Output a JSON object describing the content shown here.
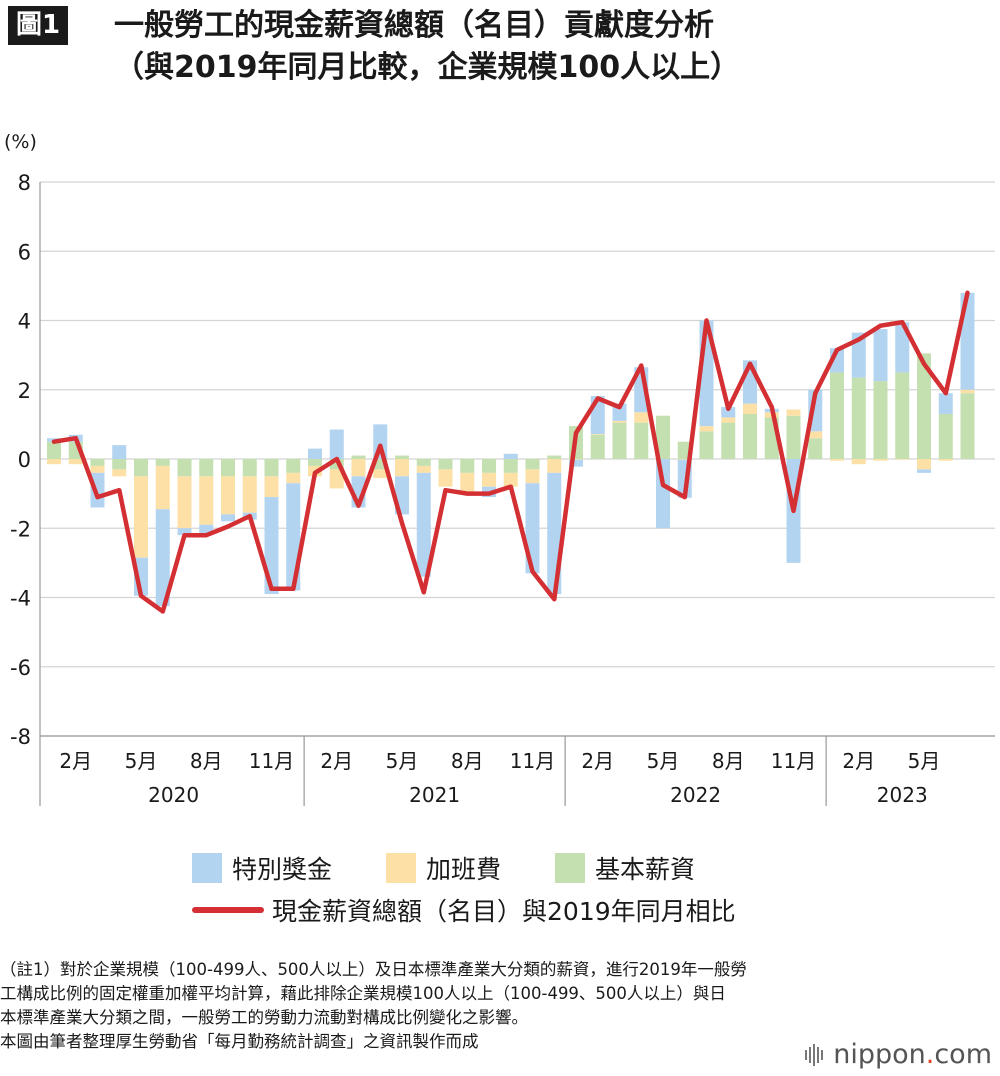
{
  "header": {
    "badge": "圖1",
    "title_line1": "一般勞工的現金薪資總額（名目）貢獻度分析",
    "title_line2": "（與2019年同月比較，企業規模100人以上）"
  },
  "colors": {
    "special_bonus": "#b3d4f0",
    "overtime": "#fde0a6",
    "base_salary": "#c4dfb0",
    "total_line": "#d42f33",
    "grid": "#d4d4d4",
    "axis": "#999999"
  },
  "chart_data": {
    "type": "bar",
    "stacked": true,
    "ylabel": "(%)",
    "ylim": [
      -8,
      8
    ],
    "yticks": [
      8,
      6,
      4,
      2,
      0,
      -2,
      -4,
      -6,
      -8
    ],
    "grid": true,
    "months": [
      "2020-01",
      "2020-02",
      "2020-03",
      "2020-04",
      "2020-05",
      "2020-06",
      "2020-07",
      "2020-08",
      "2020-09",
      "2020-10",
      "2020-11",
      "2020-12",
      "2021-01",
      "2021-02",
      "2021-03",
      "2021-04",
      "2021-05",
      "2021-06",
      "2021-07",
      "2021-08",
      "2021-09",
      "2021-10",
      "2021-11",
      "2021-12",
      "2022-01",
      "2022-02",
      "2022-03",
      "2022-04",
      "2022-05",
      "2022-06",
      "2022-07",
      "2022-08",
      "2022-09",
      "2022-10",
      "2022-11",
      "2022-12",
      "2023-01",
      "2023-02",
      "2023-03",
      "2023-04",
      "2023-05",
      "2023-06",
      "2023-07"
    ],
    "x_tick_labels": [
      {
        "month": "2020-02",
        "label": "2月"
      },
      {
        "month": "2020-05",
        "label": "5月"
      },
      {
        "month": "2020-08",
        "label": "8月"
      },
      {
        "month": "2020-11",
        "label": "11月"
      },
      {
        "month": "2021-02",
        "label": "2月"
      },
      {
        "month": "2021-05",
        "label": "5月"
      },
      {
        "month": "2021-08",
        "label": "8月"
      },
      {
        "month": "2021-11",
        "label": "11月"
      },
      {
        "month": "2022-02",
        "label": "2月"
      },
      {
        "month": "2022-05",
        "label": "5月"
      },
      {
        "month": "2022-08",
        "label": "8月"
      },
      {
        "month": "2022-11",
        "label": "11月"
      },
      {
        "month": "2023-02",
        "label": "2月"
      },
      {
        "month": "2023-05",
        "label": "5月"
      }
    ],
    "year_groups": [
      {
        "label": "2020",
        "first_month": "2020-01",
        "last_month": "2020-12"
      },
      {
        "label": "2021",
        "first_month": "2021-01",
        "last_month": "2021-12"
      },
      {
        "label": "2022",
        "first_month": "2022-01",
        "last_month": "2022-12"
      },
      {
        "label": "2023",
        "first_month": "2023-01",
        "last_month": "2023-07"
      }
    ],
    "series": [
      {
        "name": "基本薪資",
        "kind": "bar",
        "values": [
          0.5,
          0.5,
          -0.2,
          -0.3,
          -0.5,
          -0.2,
          -0.5,
          -0.5,
          -0.5,
          -0.5,
          -0.5,
          -0.4,
          -0.2,
          -0.3,
          0.1,
          -0.3,
          0.1,
          -0.2,
          -0.3,
          -0.4,
          -0.4,
          -0.4,
          -0.3,
          0.1,
          0.95,
          0.7,
          1.05,
          1.05,
          1.25,
          0.5,
          0.8,
          1.05,
          1.3,
          1.2,
          1.25,
          0.6,
          2.5,
          2.35,
          2.25,
          2.5,
          3.05,
          1.3,
          1.9
        ]
      },
      {
        "name": "加班費",
        "kind": "bar",
        "values": [
          -0.15,
          -0.15,
          -0.2,
          -0.2,
          -2.35,
          -1.25,
          -1.5,
          -1.4,
          -1.1,
          -1.05,
          -0.6,
          -0.3,
          -0.3,
          -0.55,
          -0.5,
          -0.25,
          -0.5,
          -0.2,
          -0.5,
          -0.6,
          -0.4,
          -0.4,
          -0.4,
          -0.4,
          -0.02,
          0.02,
          0.05,
          0.3,
          0.0,
          -0.02,
          0.15,
          0.15,
          0.3,
          0.15,
          0.18,
          0.2,
          -0.05,
          -0.15,
          -0.05,
          -0.02,
          -0.3,
          -0.05,
          0.1
        ]
      },
      {
        "name": "特別獎金",
        "kind": "bar",
        "values": [
          0.1,
          0.2,
          -1.0,
          0.4,
          -1.1,
          -2.8,
          -0.2,
          -0.3,
          -0.2,
          -0.2,
          -2.8,
          -3.1,
          0.3,
          0.85,
          -0.9,
          1.0,
          -1.1,
          -3.0,
          0.0,
          0.0,
          -0.3,
          0.15,
          -2.6,
          -3.5,
          -0.2,
          1.1,
          0.5,
          1.3,
          -2.0,
          -1.1,
          3.05,
          0.3,
          1.25,
          0.1,
          -3.0,
          1.2,
          0.7,
          1.3,
          1.5,
          1.45,
          -0.1,
          0.6,
          2.8
        ]
      },
      {
        "name": "現金薪資總額（名目）與2019年同月相比",
        "kind": "line",
        "values": [
          0.5,
          0.6,
          -1.1,
          -0.9,
          -3.95,
          -4.4,
          -2.2,
          -2.2,
          -1.95,
          -1.65,
          -3.75,
          -3.75,
          -0.4,
          0.0,
          -1.35,
          0.38,
          -1.85,
          -3.85,
          -0.9,
          -1.0,
          -1.0,
          -0.8,
          -3.25,
          -4.05,
          0.75,
          1.75,
          1.5,
          2.7,
          -0.75,
          -1.1,
          4.0,
          1.45,
          2.75,
          1.5,
          -1.5,
          1.9,
          3.15,
          3.45,
          3.85,
          3.95,
          2.75,
          1.9,
          4.8
        ]
      }
    ]
  },
  "legend": {
    "special_bonus": "特別獎金",
    "overtime": "加班費",
    "base_salary": "基本薪資",
    "total_line": "現金薪資總額（名目）與2019年同月相比"
  },
  "notes": {
    "line1": "（註1）對於企業規模（100-499人、500人以上）及日本標準產業大分類的薪資，進行2019年一般勞",
    "line2": "工構成比例的固定權重加權平均計算，藉此排除企業規模100人以上（100-499、500人以上）與日",
    "line3": "本標準產業大分類之間，一般勞工的勞動力流動對構成比例變化之影響。",
    "line4": "本圖由筆者整理厚生勞動省「每月勤務統計調查」之資訊製作而成"
  },
  "brand": {
    "name": "nippon",
    "dot": ".",
    "tld": "com"
  }
}
